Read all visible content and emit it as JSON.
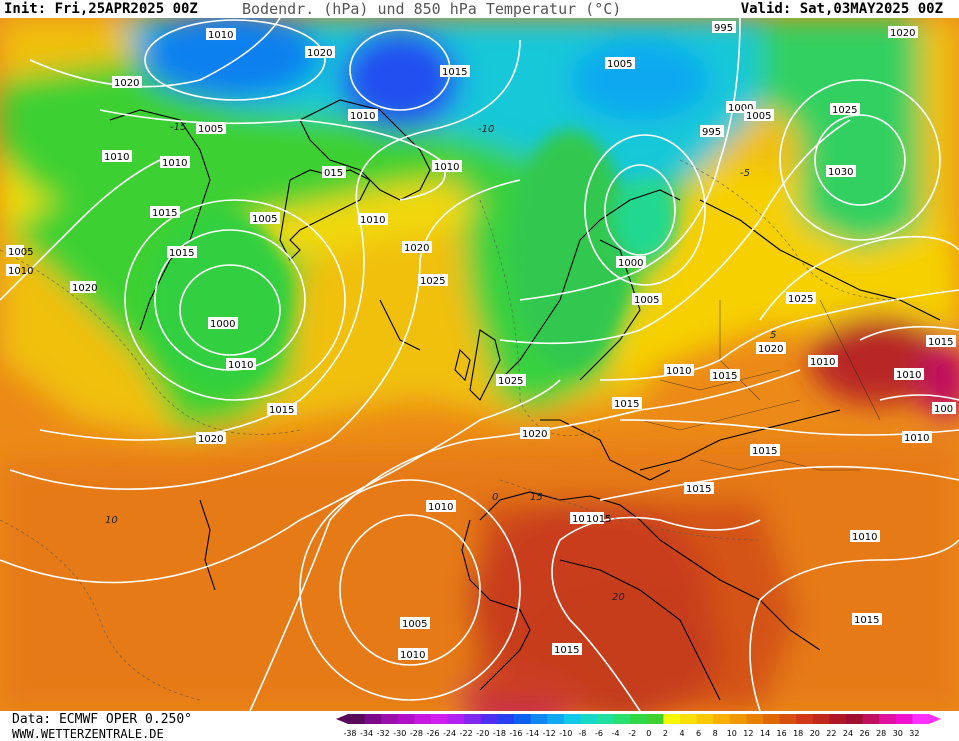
{
  "header": {
    "init": "Init: Fri,25APR2025 00Z",
    "title": "Bodendr. (hPa) und 850 hPa Temperatur (°C)",
    "valid": "Valid: Sat,03MAY2025 00Z"
  },
  "footer": {
    "source": "Data: ECMWF OPER 0.250°",
    "website": "WWW.WETTERZENTRALE.DE"
  },
  "colorscale": {
    "ticks": [
      "-38",
      "-34",
      "-32",
      "-30",
      "-28",
      "-26",
      "-24",
      "-22",
      "-20",
      "-18",
      "-16",
      "-14",
      "-12",
      "-10",
      "-8",
      "-6",
      "-4",
      "-2",
      "0",
      "2",
      "4",
      "6",
      "8",
      "10",
      "12",
      "14",
      "16",
      "18",
      "20",
      "22",
      "24",
      "26",
      "28",
      "30",
      "32"
    ],
    "colors": [
      "#5a0a5a",
      "#7a0a8a",
      "#9a10aa",
      "#b010c8",
      "#c818e0",
      "#d020f0",
      "#b020f0",
      "#8028f0",
      "#5030f0",
      "#2840f0",
      "#1060f0",
      "#1088f0",
      "#10a8f0",
      "#10c8e8",
      "#18d8c8",
      "#20e0a0",
      "#28e070",
      "#30d848",
      "#40d030",
      "#f8f800",
      "#f8e000",
      "#f8c800",
      "#f8b000",
      "#f09800",
      "#e88000",
      "#e06800",
      "#d85010",
      "#d03818",
      "#c02820",
      "#b01828",
      "#a01030",
      "#c01060",
      "#e010a0",
      "#f010d0",
      "#ff30ff"
    ]
  },
  "isobars": [
    {
      "id": "1010-nw",
      "label": "1010"
    },
    {
      "id": "1020-greenland",
      "label": "1020"
    },
    {
      "id": "1015-arctic",
      "label": "1015"
    },
    {
      "id": "995-north",
      "label": "995"
    },
    {
      "id": "1020-ne",
      "label": "1020"
    },
    {
      "id": "1005-north",
      "label": "1005"
    },
    {
      "id": "1000-north",
      "label": "1000"
    },
    {
      "id": "995-scand",
      "label": "995"
    },
    {
      "id": "1005-scand",
      "label": "1005"
    },
    {
      "id": "1025-ne",
      "label": "1025"
    },
    {
      "id": "1030-ne",
      "label": "1030"
    },
    {
      "id": "1020-green2",
      "label": "1020"
    },
    {
      "id": "1005-green",
      "label": "1005"
    },
    {
      "id": "1010-a",
      "label": "1010"
    },
    {
      "id": "1010-b",
      "label": "1010"
    },
    {
      "id": "1010-c",
      "label": "1010"
    },
    {
      "id": "1015-a",
      "label": "1015"
    },
    {
      "id": "1015-b",
      "label": "1015"
    },
    {
      "id": "1005-low",
      "label": "1005"
    },
    {
      "id": "1000-low",
      "label": "1000"
    },
    {
      "id": "1010-low",
      "label": "1010"
    },
    {
      "id": "1015-low",
      "label": "1015"
    },
    {
      "id": "1020-low",
      "label": "1020"
    },
    {
      "id": "1015-iceland",
      "label": "015"
    },
    {
      "id": "1010-iceland",
      "label": "1010"
    },
    {
      "id": "1010-east-iceland",
      "label": "1010"
    },
    {
      "id": "1020-atl",
      "label": "1020"
    },
    {
      "id": "1025-atl",
      "label": "1025"
    },
    {
      "id": "1000-balt",
      "label": "1000"
    },
    {
      "id": "1005-balt",
      "label": "1005"
    },
    {
      "id": "1025-russia",
      "label": "1025"
    },
    {
      "id": "1020-russia",
      "label": "1020"
    },
    {
      "id": "1010-russia",
      "label": "1010"
    },
    {
      "id": "1015-east",
      "label": "1015"
    },
    {
      "id": "1010-far-east",
      "label": "1010"
    },
    {
      "id": "1010-far-east2",
      "label": "1010"
    },
    {
      "id": "1015-central",
      "label": "1015"
    },
    {
      "id": "1010-central",
      "label": "1010"
    },
    {
      "id": "1025-nsea",
      "label": "1025"
    },
    {
      "id": "1020-nsea",
      "label": "1020"
    },
    {
      "id": "1015-central2",
      "label": "1015"
    },
    {
      "id": "1015-balkan",
      "label": "1015"
    },
    {
      "id": "1015-med",
      "label": "1015"
    },
    {
      "id": "1015-italy",
      "label": "1015"
    },
    {
      "id": "1010-med-east",
      "label": "1010"
    },
    {
      "id": "1015-med-east",
      "label": "1015"
    },
    {
      "id": "1010-iberia",
      "label": "1010"
    },
    {
      "id": "1005-iberia",
      "label": "1005"
    },
    {
      "id": "1010-iberia2",
      "label": "1010"
    },
    {
      "id": "1015-africa",
      "label": "1015"
    },
    {
      "id": "1020-west",
      "label": "1020"
    },
    {
      "id": "1018-edge",
      "label": "1015"
    },
    {
      "id": "1010-edge",
      "label": "1010"
    },
    {
      "id": "1005-edge",
      "label": "1005"
    },
    {
      "id": "1000-edge",
      "label": "100"
    }
  ],
  "temperature_labels": [
    "-15",
    "-10",
    "-5",
    "0",
    "5",
    "10",
    "15",
    "20"
  ]
}
